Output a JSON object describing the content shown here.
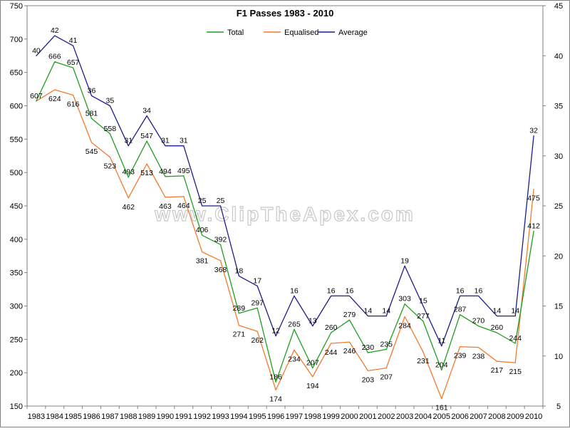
{
  "chart_data": {
    "type": "line",
    "title": "F1 Passes  1983 - 2010",
    "watermark": "www.ClipTheApex.com",
    "categories": [
      "1983",
      "1984",
      "1985",
      "1986",
      "1987",
      "1988",
      "1989",
      "1990",
      "1991",
      "1992",
      "1993",
      "1994",
      "1995",
      "1996",
      "1997",
      "1998",
      "1999",
      "2000",
      "2001",
      "2002",
      "2003",
      "2004",
      "2005",
      "2006",
      "2007",
      "2008",
      "2009",
      "2010"
    ],
    "y_left": {
      "min": 150,
      "max": 750,
      "step": 50,
      "ticks": [
        "150",
        "200",
        "250",
        "300",
        "350",
        "400",
        "450",
        "500",
        "550",
        "600",
        "650",
        "700",
        "750"
      ]
    },
    "y_right": {
      "min": 5,
      "max": 45,
      "step": 5,
      "ticks": [
        "5",
        "10",
        "15",
        "20",
        "25",
        "30",
        "35",
        "40",
        "45"
      ]
    },
    "legend_position": "top",
    "grid": false,
    "series": [
      {
        "name": "Total",
        "axis": "left",
        "color": "#1f9f1f",
        "values": [
          607,
          666,
          657,
          581,
          558,
          493,
          547,
          494,
          495,
          406,
          392,
          289,
          297,
          186,
          265,
          207,
          260,
          279,
          230,
          235,
          303,
          277,
          204,
          287,
          270,
          260,
          244,
          412
        ],
        "labels": [
          "607",
          "666",
          "657",
          "581",
          "558",
          "493",
          "547",
          "494",
          "495",
          "406",
          "392",
          "289",
          "297",
          "186",
          "265",
          "207",
          "260",
          "279",
          "230",
          "235",
          "303",
          "277",
          "204",
          "287",
          "270",
          "260",
          "244",
          "412"
        ]
      },
      {
        "name": "Equalised",
        "axis": "left",
        "color": "#f07b2c",
        "values": [
          607,
          624,
          616,
          545,
          523,
          462,
          513,
          463,
          464,
          381,
          368,
          271,
          262,
          174,
          234,
          194,
          244,
          246,
          203,
          207,
          284,
          231,
          161,
          239,
          238,
          217,
          215,
          475
        ],
        "labels": [
          "",
          "624",
          "616",
          "545",
          "523",
          "462",
          "513",
          "463",
          "464",
          "381",
          "368",
          "271",
          "262",
          "174",
          "234",
          "194",
          "244",
          "246",
          "203",
          "207",
          "284",
          "231",
          "161",
          "239",
          "238",
          "217",
          "215",
          "475"
        ]
      },
      {
        "name": "Average",
        "axis": "right",
        "color": "#1c1c8c",
        "values": [
          40,
          42,
          41,
          36,
          35,
          31,
          34,
          31,
          31,
          25,
          25,
          18,
          17,
          12,
          16,
          13,
          16,
          16,
          14,
          14,
          19,
          15,
          11,
          16,
          16,
          14,
          14,
          32
        ],
        "labels": [
          "40",
          "42",
          "41",
          "36",
          "35",
          "31",
          "34",
          "31",
          "31",
          "25",
          "25",
          "18",
          "17",
          "12",
          "16",
          "13",
          "16",
          "16",
          "14",
          "14",
          "19",
          "15",
          "11",
          "16",
          "16",
          "14",
          "14",
          "32"
        ]
      }
    ]
  }
}
